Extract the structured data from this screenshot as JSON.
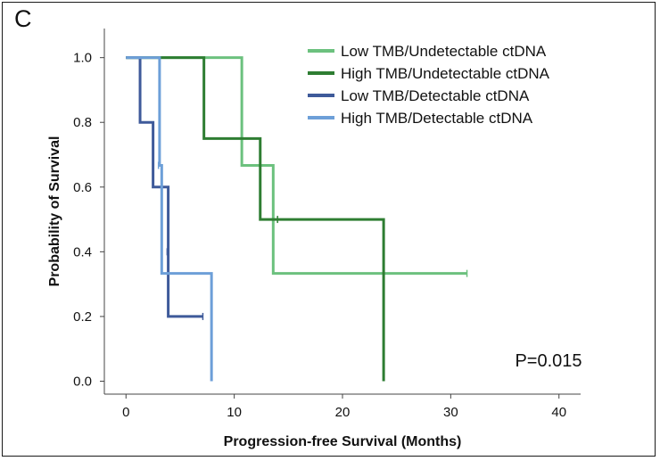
{
  "panel_label": "C",
  "chart_data": {
    "type": "line",
    "subtype": "kaplan-meier step curves",
    "xlabel": "Progression-free Survival (Months)",
    "ylabel": "Probability of Survival",
    "xlim": [
      -2,
      42
    ],
    "ylim": [
      -0.04,
      1.09
    ],
    "xticks": [
      0,
      10,
      20,
      30,
      40
    ],
    "yticks": [
      0.0,
      0.2,
      0.4,
      0.6,
      0.8,
      1.0
    ],
    "ytick_labels": [
      "0.0",
      "0.2",
      "0.4",
      "0.6",
      "0.8",
      "1.0"
    ],
    "legend_position": "top-right",
    "annotation": "P=0.015",
    "series": [
      {
        "name": "Low TMB/Undetectable ctDNA",
        "color": "#6cc17e",
        "steps": [
          [
            0,
            1.0
          ],
          [
            10.7,
            0.667
          ],
          [
            13.6,
            0.333
          ],
          [
            31.5,
            0.333
          ]
        ],
        "censors": [
          [
            31.5,
            0.333
          ]
        ]
      },
      {
        "name": "High TMB/Undetectable ctDNA",
        "color": "#2e7d32",
        "steps": [
          [
            0,
            1.0
          ],
          [
            7.2,
            0.75
          ],
          [
            12.4,
            0.5
          ],
          [
            23.8,
            0.0
          ]
        ],
        "censors": [
          [
            14.0,
            0.5
          ]
        ]
      },
      {
        "name": "Low TMB/Detectable ctDNA",
        "color": "#3e5a9a",
        "steps": [
          [
            0,
            1.0
          ],
          [
            1.3,
            0.8
          ],
          [
            2.5,
            0.6
          ],
          [
            3.9,
            0.2
          ],
          [
            7.1,
            0.2
          ]
        ],
        "censors": [
          [
            3.8,
            0.4
          ],
          [
            7.1,
            0.2
          ]
        ]
      },
      {
        "name": "High TMB/Detectable ctDNA",
        "color": "#6d9fd8",
        "steps": [
          [
            0,
            1.0
          ],
          [
            3.1,
            0.667
          ],
          [
            3.3,
            0.333
          ],
          [
            7.9,
            0.0
          ]
        ],
        "censors": [
          [
            3.0,
            0.667
          ]
        ]
      }
    ]
  }
}
